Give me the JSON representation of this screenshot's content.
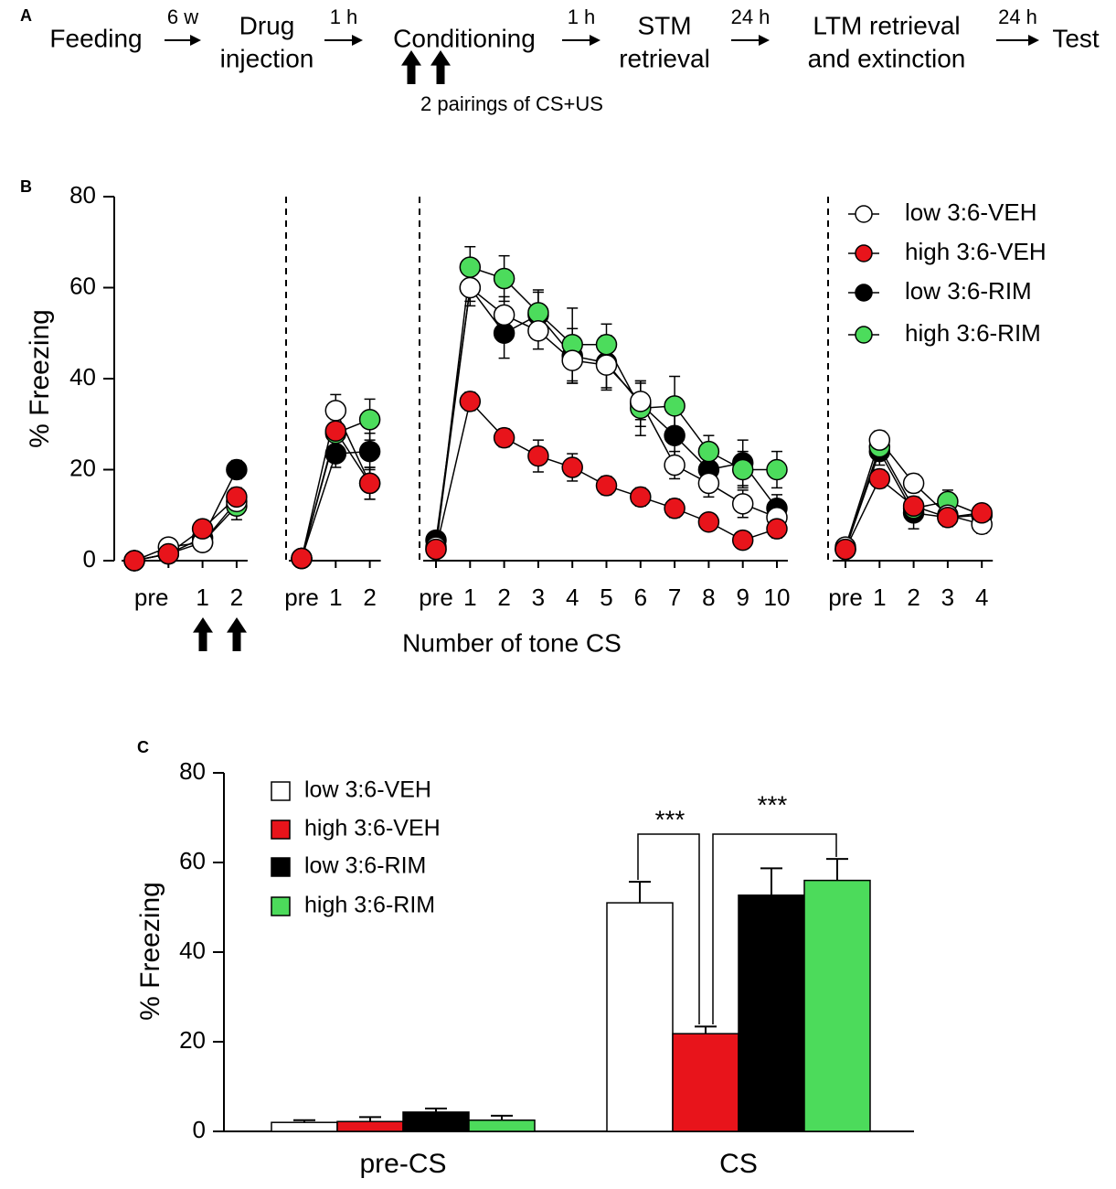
{
  "panel_labels": [
    "A",
    "B",
    "C"
  ],
  "timeline": {
    "steps": [
      {
        "lines": [
          "Feeding"
        ]
      },
      {
        "lines": [
          "Drug",
          "injection"
        ]
      },
      {
        "lines": [
          "Conditioning"
        ]
      },
      {
        "lines": [
          "STM",
          "retrieval"
        ]
      },
      {
        "lines": [
          "LTM retrieval",
          "and extinction"
        ]
      },
      {
        "lines": [
          "Test"
        ]
      }
    ],
    "intervals": [
      "6 w",
      "1 h",
      "1 h",
      "24 h",
      "24 h"
    ],
    "note": "2 pairings of CS+US"
  },
  "chart_data": [
    {
      "type": "line",
      "ylabel": "% Freezing",
      "xlabel": "Number of tone CS",
      "ylim": [
        0,
        80
      ],
      "yticks": [
        0,
        20,
        40,
        60,
        80
      ],
      "legend": "top-right",
      "series": [
        {
          "name": "low 3:6-VEH",
          "color": "#ffffff"
        },
        {
          "name": "high 3:6-VEH",
          "color": "#e8141b"
        },
        {
          "name": "low 3:6-RIM",
          "color": "#000000"
        },
        {
          "name": "high 3:6-RIM",
          "color": "#4cdc5c"
        }
      ],
      "panels": [
        {
          "categories": [
            "pre",
            null,
            "1",
            "2"
          ],
          "series": [
            {
              "values": [
                0,
                3,
                4,
                13
              ],
              "errors": [
                0.5,
                1,
                1.5,
                2
              ]
            },
            {
              "values": [
                0,
                1.5,
                7,
                14
              ],
              "errors": [
                0.5,
                1,
                1.5,
                2
              ]
            },
            {
              "values": [
                0,
                1.5,
                5,
                20
              ],
              "errors": [
                0.5,
                1,
                1.5,
                2
              ]
            },
            {
              "values": [
                0,
                1.5,
                4,
                12
              ],
              "errors": [
                0.5,
                1,
                1.5,
                3
              ]
            }
          ]
        },
        {
          "categories": [
            "pre",
            "1",
            "2"
          ],
          "series": [
            {
              "values": [
                0.5,
                33,
                17
              ],
              "errors": [
                0.5,
                3.5,
                3.5
              ]
            },
            {
              "values": [
                0.5,
                28.5,
                17
              ],
              "errors": [
                0.5,
                3,
                3.5
              ]
            },
            {
              "values": [
                0.5,
                23.5,
                24
              ],
              "errors": [
                0.5,
                3,
                4
              ]
            },
            {
              "values": [
                0.5,
                28,
                31
              ],
              "errors": [
                0.5,
                3,
                4.5
              ]
            }
          ]
        },
        {
          "categories": [
            "pre",
            "1",
            "2",
            "3",
            "4",
            "5",
            "6",
            "7",
            "8",
            "9",
            "10"
          ],
          "series": [
            {
              "values": [
                3,
                60,
                54,
                50.5,
                44,
                43,
                35,
                21,
                17,
                12.5,
                9.5
              ],
              "errors": [
                1,
                3,
                4,
                4,
                5,
                5,
                4,
                3,
                3,
                3,
                2
              ]
            },
            {
              "values": [
                2.5,
                35,
                27,
                23,
                20.5,
                16.5,
                14,
                11.5,
                8.5,
                4.5,
                7
              ],
              "errors": [
                1,
                2,
                2,
                3.5,
                3,
                2,
                2,
                2,
                1.5,
                1,
                2
              ]
            },
            {
              "values": [
                4.5,
                60,
                50,
                54,
                45,
                43.5,
                34.5,
                27.5,
                20,
                21.5,
                11.5
              ],
              "errors": [
                1,
                4,
                5.5,
                5,
                6,
                6,
                5,
                5,
                4,
                5,
                3
              ]
            },
            {
              "values": [
                2.5,
                64.5,
                62,
                54.5,
                47.5,
                47.5,
                33.5,
                34,
                24,
                20,
                20
              ],
              "errors": [
                1,
                4.5,
                5,
                5,
                8,
                4.5,
                6,
                6.5,
                3.5,
                4,
                4
              ]
            }
          ]
        },
        {
          "categories": [
            "pre",
            "1",
            "2",
            "3",
            "4"
          ],
          "series": [
            {
              "values": [
                3,
                26.5,
                17,
                10,
                8
              ],
              "errors": [
                0.5,
                2,
                2,
                2,
                2
              ]
            },
            {
              "values": [
                2.5,
                18,
                12,
                9.5,
                10.5
              ],
              "errors": [
                0.5,
                2,
                2,
                2,
                1
              ]
            },
            {
              "values": [
                2.5,
                24,
                10.5,
                9.5,
                10
              ],
              "errors": [
                0.5,
                3,
                3.5,
                2,
                1.5
              ]
            },
            {
              "values": [
                2.5,
                25,
                11.5,
                13,
                10
              ],
              "errors": [
                0.5,
                3,
                2.5,
                2.5,
                1.5
              ]
            }
          ]
        }
      ]
    },
    {
      "type": "bar",
      "ylabel": "% Freezing",
      "ylim": [
        0,
        80
      ],
      "yticks": [
        0,
        20,
        40,
        60,
        80
      ],
      "legend": "top-left",
      "categories": [
        "pre-CS",
        "CS"
      ],
      "series": [
        {
          "name": "low 3:6-VEH",
          "color": "#ffffff",
          "values": [
            2,
            51
          ],
          "errors": [
            0.5,
            4.7
          ]
        },
        {
          "name": "high 3:6-VEH",
          "color": "#e8141b",
          "values": [
            2.2,
            21.8
          ],
          "errors": [
            1,
            1.6
          ]
        },
        {
          "name": "low 3:6-RIM",
          "color": "#000000",
          "values": [
            4.3,
            52.7
          ],
          "errors": [
            0.8,
            6
          ]
        },
        {
          "name": "high 3:6-RIM",
          "color": "#4cdb5b",
          "values": [
            2.5,
            56
          ],
          "errors": [
            1,
            4.8
          ]
        }
      ],
      "annotations": [
        "***",
        "***"
      ]
    }
  ]
}
